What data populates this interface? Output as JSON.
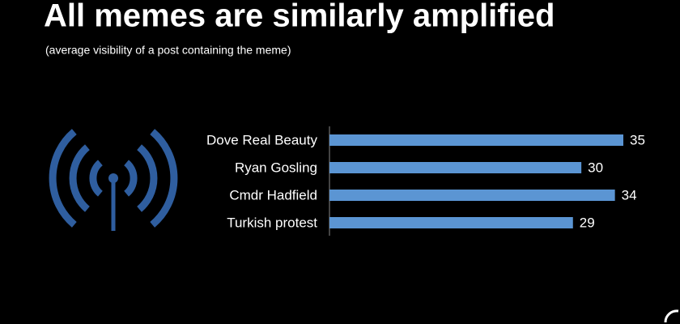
{
  "chart_data": {
    "type": "bar",
    "orientation": "horizontal",
    "title": "All memes are similarly amplified",
    "subtitle": "(average visibility of a post containing the meme)",
    "categories": [
      "Dove Real Beauty",
      "Ryan Gosling",
      "Cmdr Hadfield",
      "Turkish protest"
    ],
    "values": [
      35,
      30,
      34,
      29
    ],
    "color": "#5b95d3"
  }
}
